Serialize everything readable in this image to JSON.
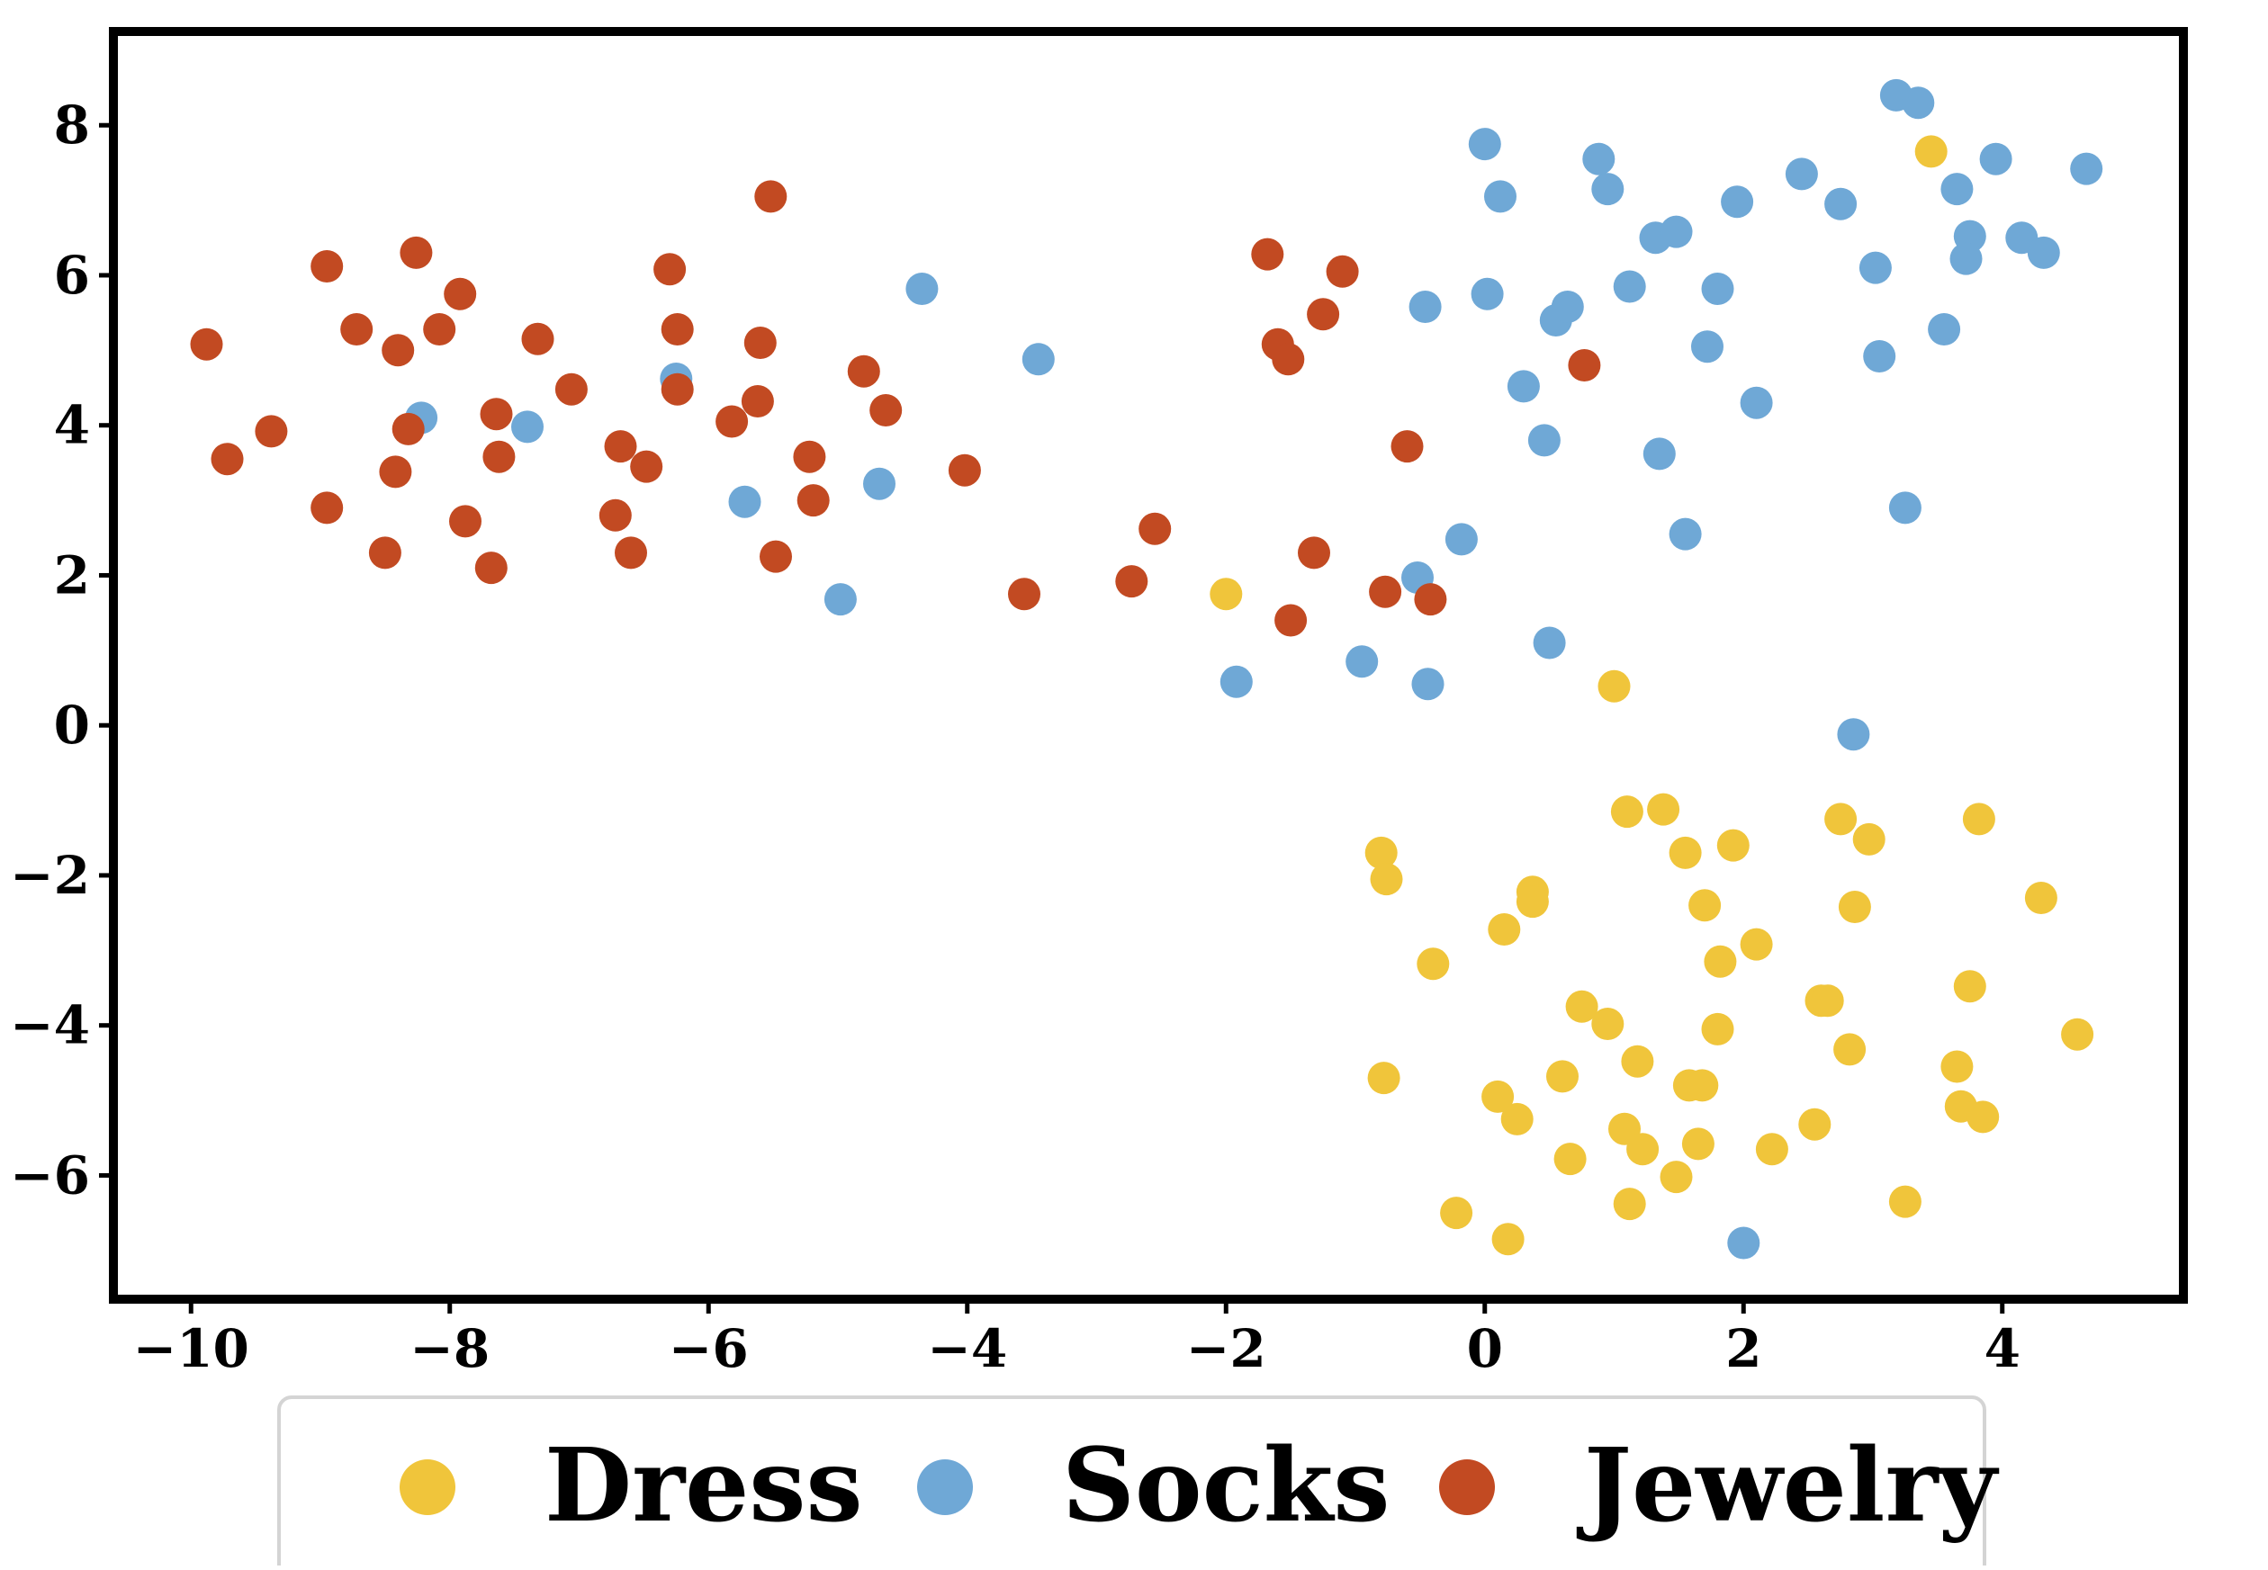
{
  "chart_data": {
    "type": "scatter",
    "title": "",
    "xlabel": "",
    "ylabel": "",
    "xlim": [
      -10.6,
      5.4
    ],
    "ylim": [
      -7.65,
      9.25
    ],
    "xticks": [
      -10,
      -8,
      -6,
      -4,
      -2,
      0,
      2,
      4
    ],
    "yticks": [
      -6,
      -4,
      -2,
      0,
      2,
      4,
      6,
      8
    ],
    "grid": false,
    "legend_position": "bottom-center",
    "series": [
      {
        "name": "Dress",
        "color": "#f0c53b",
        "points": [
          [
            3.45,
            7.65
          ],
          [
            -2.0,
            1.75
          ],
          [
            1.0,
            0.52
          ],
          [
            1.1,
            -1.15
          ],
          [
            1.38,
            -1.12
          ],
          [
            2.75,
            -1.25
          ],
          [
            3.82,
            -1.25
          ],
          [
            -0.8,
            -1.7
          ],
          [
            1.55,
            -1.7
          ],
          [
            1.92,
            -1.6
          ],
          [
            2.97,
            -1.52
          ],
          [
            -0.76,
            -2.05
          ],
          [
            0.37,
            -2.22
          ],
          [
            0.37,
            -2.35
          ],
          [
            1.7,
            -2.4
          ],
          [
            2.86,
            -2.42
          ],
          [
            4.3,
            -2.3
          ],
          [
            0.15,
            -2.72
          ],
          [
            2.1,
            -2.92
          ],
          [
            -0.4,
            -3.18
          ],
          [
            1.82,
            -3.15
          ],
          [
            0.75,
            -3.75
          ],
          [
            0.95,
            -3.98
          ],
          [
            1.8,
            -4.05
          ],
          [
            2.6,
            -3.67
          ],
          [
            2.65,
            -3.67
          ],
          [
            3.75,
            -3.48
          ],
          [
            1.18,
            -4.48
          ],
          [
            2.82,
            -4.32
          ],
          [
            4.58,
            -4.12
          ],
          [
            -0.78,
            -4.7
          ],
          [
            0.6,
            -4.68
          ],
          [
            1.58,
            -4.8
          ],
          [
            1.68,
            -4.8
          ],
          [
            3.65,
            -4.55
          ],
          [
            0.1,
            -4.95
          ],
          [
            0.25,
            -5.25
          ],
          [
            1.08,
            -5.38
          ],
          [
            3.68,
            -5.08
          ],
          [
            3.85,
            -5.22
          ],
          [
            1.22,
            -5.65
          ],
          [
            1.65,
            -5.58
          ],
          [
            0.66,
            -5.78
          ],
          [
            2.22,
            -5.65
          ],
          [
            2.55,
            -5.32
          ],
          [
            1.48,
            -6.02
          ],
          [
            1.12,
            -6.38
          ],
          [
            3.25,
            -6.35
          ],
          [
            -0.22,
            -6.5
          ],
          [
            0.18,
            -6.85
          ]
        ]
      },
      {
        "name": "Socks",
        "color": "#6fa8d6",
        "points": [
          [
            0.0,
            7.75
          ],
          [
            0.12,
            7.05
          ],
          [
            0.88,
            7.55
          ],
          [
            0.95,
            7.15
          ],
          [
            1.95,
            6.98
          ],
          [
            2.45,
            7.35
          ],
          [
            2.75,
            6.95
          ],
          [
            3.18,
            8.4
          ],
          [
            3.35,
            8.3
          ],
          [
            3.65,
            7.15
          ],
          [
            3.95,
            7.55
          ],
          [
            4.65,
            7.42
          ],
          [
            1.32,
            6.5
          ],
          [
            1.48,
            6.58
          ],
          [
            3.02,
            6.1
          ],
          [
            3.75,
            6.52
          ],
          [
            3.72,
            6.22
          ],
          [
            4.15,
            6.5
          ],
          [
            4.32,
            6.3
          ],
          [
            -0.46,
            5.58
          ],
          [
            0.02,
            5.75
          ],
          [
            0.55,
            5.4
          ],
          [
            0.64,
            5.58
          ],
          [
            1.12,
            5.85
          ],
          [
            1.8,
            5.82
          ],
          [
            1.72,
            5.05
          ],
          [
            3.05,
            4.92
          ],
          [
            3.55,
            5.28
          ],
          [
            0.3,
            4.52
          ],
          [
            2.1,
            4.3
          ],
          [
            0.46,
            3.8
          ],
          [
            1.35,
            3.62
          ],
          [
            1.55,
            2.55
          ],
          [
            3.25,
            2.9
          ],
          [
            -0.18,
            2.48
          ],
          [
            -0.52,
            1.97
          ],
          [
            0.5,
            1.1
          ],
          [
            -0.95,
            0.85
          ],
          [
            -0.44,
            0.55
          ],
          [
            -1.92,
            0.58
          ],
          [
            2.85,
            -0.12
          ],
          [
            2.0,
            -6.9
          ],
          [
            -4.35,
            5.82
          ],
          [
            -3.45,
            4.88
          ],
          [
            -6.25,
            4.62
          ],
          [
            -8.22,
            4.1
          ],
          [
            -7.4,
            3.98
          ],
          [
            -5.72,
            2.98
          ],
          [
            -4.68,
            3.22
          ],
          [
            -4.98,
            1.68
          ]
        ]
      },
      {
        "name": "Jewelry",
        "color": "#c24a22",
        "points": [
          [
            -9.88,
            5.08
          ],
          [
            -9.72,
            3.55
          ],
          [
            -9.38,
            3.92
          ],
          [
            -8.95,
            6.12
          ],
          [
            -8.95,
            2.9
          ],
          [
            -8.72,
            5.28
          ],
          [
            -8.5,
            2.3
          ],
          [
            -8.42,
            3.38
          ],
          [
            -8.4,
            5.0
          ],
          [
            -8.32,
            3.95
          ],
          [
            -8.26,
            6.3
          ],
          [
            -8.08,
            5.28
          ],
          [
            -7.92,
            5.75
          ],
          [
            -7.88,
            2.72
          ],
          [
            -7.68,
            2.1
          ],
          [
            -7.64,
            4.15
          ],
          [
            -7.62,
            3.58
          ],
          [
            -7.32,
            5.15
          ],
          [
            -7.06,
            4.48
          ],
          [
            -6.68,
            3.72
          ],
          [
            -6.72,
            2.8
          ],
          [
            -6.6,
            2.3
          ],
          [
            -6.48,
            3.45
          ],
          [
            -6.3,
            6.08
          ],
          [
            -6.24,
            5.28
          ],
          [
            -6.24,
            4.48
          ],
          [
            -5.82,
            4.05
          ],
          [
            -5.62,
            4.32
          ],
          [
            -5.6,
            5.1
          ],
          [
            -5.52,
            7.05
          ],
          [
            -5.48,
            2.25
          ],
          [
            -5.22,
            3.58
          ],
          [
            -5.19,
            3.0
          ],
          [
            -4.8,
            4.72
          ],
          [
            -4.63,
            4.2
          ],
          [
            -4.02,
            3.4
          ],
          [
            -3.56,
            1.75
          ],
          [
            -2.73,
            1.92
          ],
          [
            -2.55,
            2.62
          ],
          [
            -1.68,
            6.28
          ],
          [
            -1.6,
            5.08
          ],
          [
            -1.52,
            4.88
          ],
          [
            -1.25,
            5.48
          ],
          [
            -1.1,
            6.05
          ],
          [
            -1.32,
            2.3
          ],
          [
            -1.5,
            1.4
          ],
          [
            -0.77,
            1.78
          ],
          [
            -0.42,
            1.68
          ],
          [
            -0.6,
            3.72
          ],
          [
            0.77,
            4.8
          ]
        ]
      }
    ]
  }
}
